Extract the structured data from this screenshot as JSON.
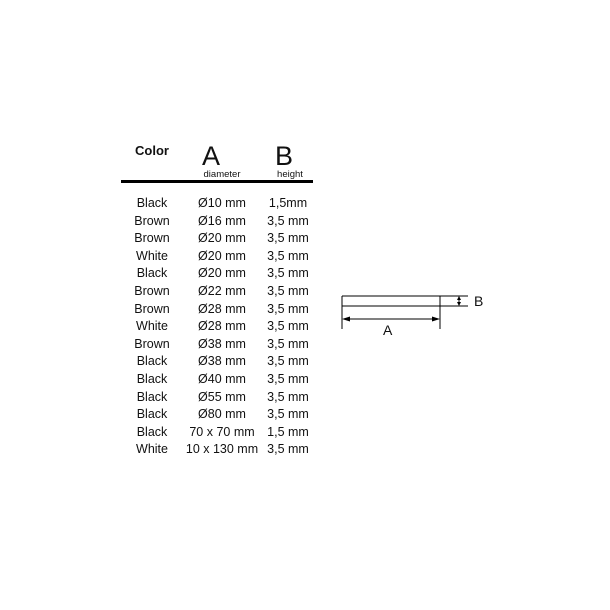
{
  "table": {
    "headers": {
      "color": "Color",
      "a": "A",
      "a_sub": "diameter",
      "b": "B",
      "b_sub": "height"
    },
    "rows": [
      {
        "color": "Black",
        "a": "Ø10 mm",
        "b": "1,5mm"
      },
      {
        "color": "Brown",
        "a": "Ø16 mm",
        "b": "3,5 mm"
      },
      {
        "color": "Brown",
        "a": "Ø20 mm",
        "b": "3,5 mm"
      },
      {
        "color": "White",
        "a": "Ø20 mm",
        "b": "3,5 mm"
      },
      {
        "color": "Black",
        "a": "Ø20 mm",
        "b": "3,5 mm"
      },
      {
        "color": "Brown",
        "a": "Ø22 mm",
        "b": "3,5 mm"
      },
      {
        "color": "Brown",
        "a": "Ø28 mm",
        "b": "3,5 mm"
      },
      {
        "color": "White",
        "a": "Ø28 mm",
        "b": "3,5 mm"
      },
      {
        "color": "Brown",
        "a": "Ø38 mm",
        "b": "3,5 mm"
      },
      {
        "color": "Black",
        "a": "Ø38 mm",
        "b": "3,5 mm"
      },
      {
        "color": "Black",
        "a": "Ø40 mm",
        "b": "3,5 mm"
      },
      {
        "color": "Black",
        "a": "Ø55 mm",
        "b": "3,5 mm"
      },
      {
        "color": "Black",
        "a": "Ø80 mm",
        "b": "3,5 mm"
      },
      {
        "color": "Black",
        "a": "70 x 70 mm",
        "b": "1,5 mm"
      },
      {
        "color": "White",
        "a": "10 x 130 mm",
        "b": "3,5 mm"
      }
    ]
  },
  "diagram": {
    "label_a": "A",
    "label_b": "B"
  }
}
